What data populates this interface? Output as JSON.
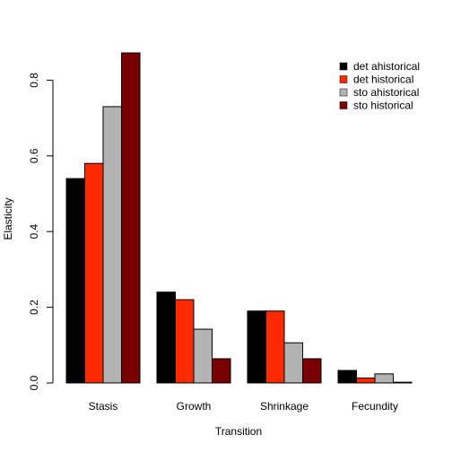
{
  "chart_data": {
    "type": "bar",
    "categories": [
      "Stasis",
      "Growth",
      "Shrinkage",
      "Fecundity"
    ],
    "series": [
      {
        "name": "det ahistorical",
        "color": "#000000",
        "values": [
          0.54,
          0.24,
          0.19,
          0.033
        ]
      },
      {
        "name": "det historical",
        "color": "#FF2A00",
        "values": [
          0.58,
          0.22,
          0.19,
          0.013
        ]
      },
      {
        "name": "sto ahistorical",
        "color": "#B3B3B3",
        "values": [
          0.73,
          0.142,
          0.106,
          0.024
        ]
      },
      {
        "name": "sto historical",
        "color": "#7A0000",
        "values": [
          0.872,
          0.064,
          0.064,
          0.002
        ]
      }
    ],
    "xlabel": "Transition",
    "ylabel": "Elasticity",
    "ylim": [
      0,
      0.872
    ],
    "yticks": [
      "0.0",
      "0.2",
      "0.4",
      "0.6",
      "0.8"
    ],
    "ytick_values": [
      0,
      0.2,
      0.4,
      0.6,
      0.8
    ],
    "grid": false,
    "legend_position": "top-right"
  }
}
